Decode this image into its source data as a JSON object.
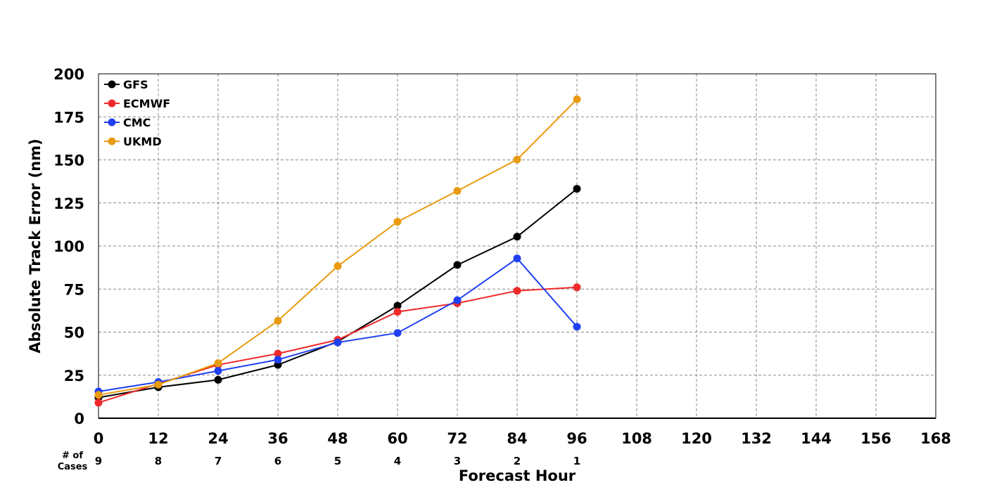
{
  "chart_data": {
    "type": "line",
    "title": "",
    "xlabel": "Forecast Hour",
    "ylabel": "Absolute Track Error (nm)",
    "xlim": [
      0,
      168
    ],
    "ylim": [
      0,
      200
    ],
    "x_ticks": [
      "0",
      "12",
      "24",
      "36",
      "48",
      "60",
      "72",
      "84",
      "96",
      "108",
      "120",
      "132",
      "144",
      "156",
      "168"
    ],
    "y_ticks": [
      "0",
      "25",
      "50",
      "75",
      "100",
      "125",
      "150",
      "175",
      "200"
    ],
    "grid": true,
    "legend_position": "top-left",
    "x": [
      0,
      12,
      24,
      36,
      48,
      60,
      72,
      84,
      96
    ],
    "series": [
      {
        "name": "GFS",
        "color": "#000000",
        "values": [
          12,
          18,
          22.3,
          31,
          44.5,
          65.3,
          89,
          105.4,
          133.2
        ]
      },
      {
        "name": "ECMWF",
        "color": "#f02a2a",
        "values": [
          9,
          20,
          31,
          37.5,
          45.5,
          61.8,
          66.8,
          74,
          76
        ]
      },
      {
        "name": "CMC",
        "color": "#2040f0",
        "values": [
          15.5,
          21,
          27.5,
          34,
          44,
          49.5,
          68.5,
          92.8,
          53.1
        ]
      },
      {
        "name": "UKMD",
        "color": "#e89b10",
        "values": [
          13.5,
          19.5,
          32,
          56.6,
          88.3,
          114.1,
          132,
          150.2,
          185.2
        ]
      }
    ],
    "cases_label": "# of\nCases",
    "cases": [
      "9",
      "8",
      "7",
      "6",
      "5",
      "4",
      "3",
      "2",
      "1"
    ]
  }
}
